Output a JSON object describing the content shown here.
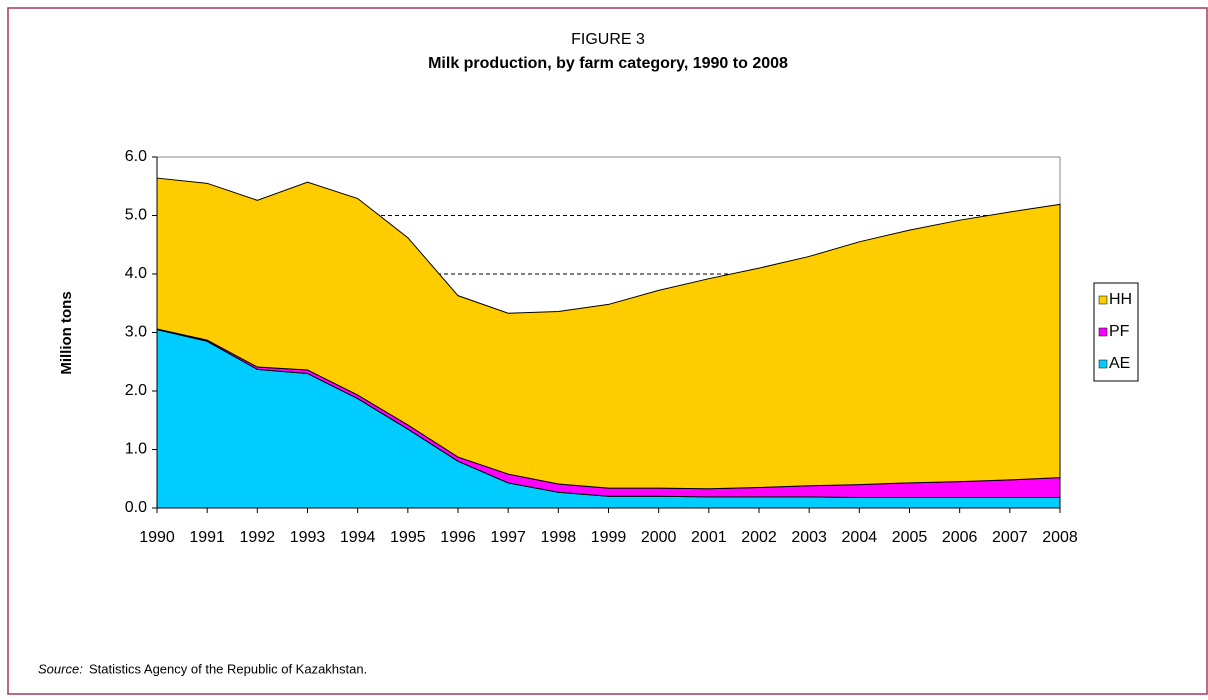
{
  "chart_data": {
    "type": "stacked_area",
    "label": "FIGURE 3",
    "title": "Milk production, by farm category, 1990 to 2008",
    "y_label": "Million tons",
    "categories": [
      "1990",
      "1991",
      "1992",
      "1993",
      "1994",
      "1995",
      "1996",
      "1997",
      "1998",
      "1999",
      "2000",
      "2001",
      "2002",
      "2003",
      "2004",
      "2005",
      "2006",
      "2007",
      "2008"
    ],
    "series": [
      {
        "name": "AE",
        "color": "#00ccff",
        "values": [
          3.05,
          2.85,
          2.37,
          2.3,
          1.87,
          1.35,
          0.8,
          0.43,
          0.27,
          0.2,
          0.2,
          0.19,
          0.19,
          0.19,
          0.18,
          0.18,
          0.18,
          0.18,
          0.18
        ]
      },
      {
        "name": "PF",
        "color": "#ff00ff",
        "values": [
          0.01,
          0.02,
          0.04,
          0.06,
          0.06,
          0.07,
          0.07,
          0.15,
          0.14,
          0.14,
          0.14,
          0.14,
          0.16,
          0.19,
          0.22,
          0.25,
          0.27,
          0.3,
          0.34
        ]
      },
      {
        "name": "HH",
        "color": "#ffcc00",
        "values": [
          2.58,
          2.68,
          2.85,
          3.21,
          3.36,
          3.2,
          2.76,
          2.75,
          2.95,
          3.14,
          3.38,
          3.59,
          3.75,
          3.92,
          4.15,
          4.32,
          4.47,
          4.58,
          4.67
        ]
      }
    ],
    "ylim": [
      0,
      6
    ],
    "yticks": [
      {
        "value": 0,
        "label": "0.0"
      },
      {
        "value": 1,
        "label": "1.0"
      },
      {
        "value": 2,
        "label": "2.0"
      },
      {
        "value": 3,
        "label": "3.0"
      },
      {
        "value": 4,
        "label": "4.0"
      },
      {
        "value": 5,
        "label": "5.0"
      },
      {
        "value": 6,
        "label": "6.0"
      }
    ],
    "grid": true,
    "legend": "right"
  },
  "source": {
    "label": "Source:",
    "text": "Statistics Agency of the Republic of Kazakhstan."
  }
}
